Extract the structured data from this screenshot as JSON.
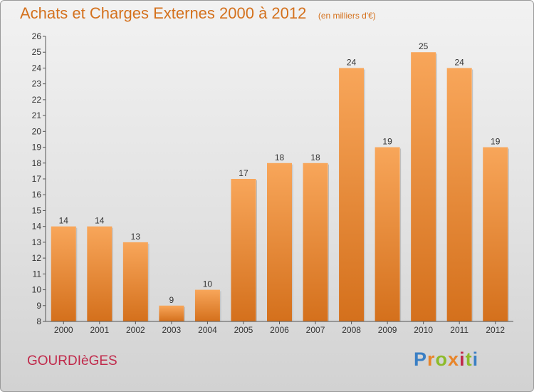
{
  "title": "Achats et Charges Externes 2000 à 2012",
  "subtitle": "(en milliers d'€)",
  "commune": "GOURDIèGES",
  "brand": {
    "text": "Proxiti",
    "letter_colors": [
      "#3a7fc4",
      "#e8852a",
      "#8dbb2a",
      "#e8852a",
      "#c0294a",
      "#8dbb2a",
      "#3a7fc4"
    ]
  },
  "colors": {
    "bar_top": "#f8a65a",
    "bar_bottom": "#d4701c",
    "title": "#d4711d",
    "commune": "#c0294a"
  },
  "chart_data": {
    "type": "bar",
    "title": "Achats et Charges Externes 2000 à 2012",
    "subtitle": "(en milliers d'€)",
    "categories": [
      "2000",
      "2001",
      "2002",
      "2003",
      "2004",
      "2005",
      "2006",
      "2007",
      "2008",
      "2009",
      "2010",
      "2011",
      "2012"
    ],
    "values": [
      14,
      14,
      13,
      9,
      10,
      17,
      18,
      18,
      24,
      19,
      25,
      24,
      19
    ],
    "data_labels": [
      "14",
      "14",
      "13",
      "9",
      "10",
      "17",
      "18",
      "18",
      "24",
      "19",
      "25",
      "24",
      "19"
    ],
    "ylim": [
      8,
      26
    ],
    "yticks": [
      "8",
      "9",
      "10",
      "11",
      "12",
      "13",
      "14",
      "15",
      "16",
      "17",
      "18",
      "19",
      "20",
      "21",
      "22",
      "23",
      "24",
      "25",
      "26"
    ],
    "grid": false,
    "legend": "none"
  }
}
